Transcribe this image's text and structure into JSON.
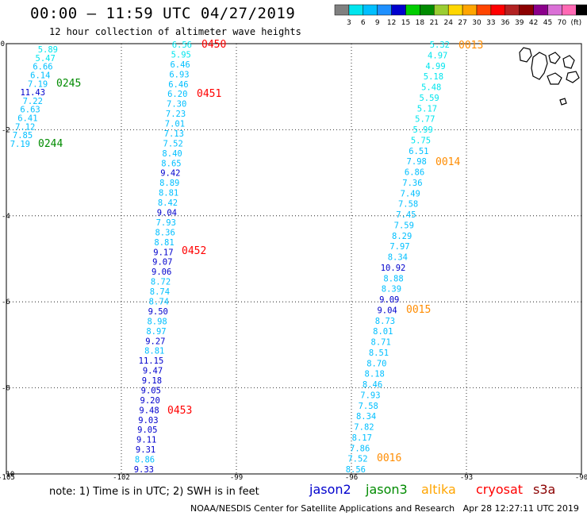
{
  "header": {
    "title": "00:00 — 11:59 UTC 04/27/2019",
    "subtitle": "12 hour collection of altimeter wave heights"
  },
  "colorbar": {
    "ticks": [
      "3",
      "6",
      "9",
      "12",
      "15",
      "18",
      "21",
      "24",
      "27",
      "30",
      "33",
      "36",
      "39",
      "42",
      "45",
      "70",
      "(ft)"
    ],
    "colors": [
      "#808080",
      "#00e5ee",
      "#00bfff",
      "#1e90ff",
      "#0000cd",
      "#00cd00",
      "#008b00",
      "#9acd32",
      "#ffd700",
      "#ffa500",
      "#ff4500",
      "#ff0000",
      "#b22222",
      "#8b0000",
      "#8b008b",
      "#da70d6",
      "#ff69b4",
      "#000000"
    ]
  },
  "axes": {
    "x_labels": [
      "-105",
      "-102",
      "-99",
      "-96",
      "-93",
      "-90"
    ],
    "y_labels": [
      "0",
      "-2",
      "-4",
      "-6",
      "-8",
      "-10"
    ]
  },
  "passes": [
    {
      "label": "0450",
      "color": "#ff0000"
    },
    {
      "label": "0451",
      "color": "#ff0000"
    },
    {
      "label": "0452",
      "color": "#ff0000"
    },
    {
      "label": "0453",
      "color": "#ff0000"
    },
    {
      "label": "0245",
      "color": "#008b00"
    },
    {
      "label": "0244",
      "color": "#008b00"
    },
    {
      "label": "0013",
      "color": "#ff8c00"
    },
    {
      "label": "0014",
      "color": "#ff8c00"
    },
    {
      "label": "0015",
      "color": "#ff8c00"
    },
    {
      "label": "0016",
      "color": "#ff8c00"
    }
  ],
  "tracks": {
    "track_a": [
      {
        "v": "5.89",
        "c": "#00e5ee"
      },
      {
        "v": "5.47",
        "c": "#00e5ee"
      },
      {
        "v": "6.66",
        "c": "#00bfff"
      },
      {
        "v": "6.14",
        "c": "#00bfff"
      },
      {
        "v": "7.19",
        "c": "#00bfff"
      },
      {
        "v": "11.43",
        "c": "#0000cd"
      },
      {
        "v": "7.22",
        "c": "#00bfff"
      },
      {
        "v": "6.63",
        "c": "#00bfff"
      },
      {
        "v": "6.41",
        "c": "#00bfff"
      },
      {
        "v": "7.12",
        "c": "#00bfff"
      },
      {
        "v": "7.85",
        "c": "#00bfff"
      },
      {
        "v": "7.19",
        "c": "#00bfff"
      }
    ],
    "track_b": [
      {
        "v": "6.56",
        "c": "#00e5ee"
      },
      {
        "v": "5.95",
        "c": "#00e5ee"
      },
      {
        "v": "6.46",
        "c": "#00bfff"
      },
      {
        "v": "6.93",
        "c": "#00bfff"
      },
      {
        "v": "6.46",
        "c": "#00bfff"
      },
      {
        "v": "6.20",
        "c": "#00bfff"
      },
      {
        "v": "7.30",
        "c": "#00bfff"
      },
      {
        "v": "7.23",
        "c": "#00bfff"
      },
      {
        "v": "7.01",
        "c": "#00bfff"
      },
      {
        "v": "7.13",
        "c": "#00bfff"
      },
      {
        "v": "7.52",
        "c": "#00bfff"
      },
      {
        "v": "8.40",
        "c": "#00bfff"
      },
      {
        "v": "8.65",
        "c": "#00bfff"
      },
      {
        "v": "9.42",
        "c": "#0000cd"
      },
      {
        "v": "8.89",
        "c": "#00bfff"
      },
      {
        "v": "8.81",
        "c": "#00bfff"
      },
      {
        "v": "8.42",
        "c": "#00bfff"
      },
      {
        "v": "9.04",
        "c": "#0000cd"
      },
      {
        "v": "7.93",
        "c": "#00bfff"
      },
      {
        "v": "8.36",
        "c": "#00bfff"
      },
      {
        "v": "8.81",
        "c": "#00bfff"
      },
      {
        "v": "9.17",
        "c": "#0000cd"
      },
      {
        "v": "9.07",
        "c": "#0000cd"
      },
      {
        "v": "9.06",
        "c": "#0000cd"
      },
      {
        "v": "8.72",
        "c": "#00bfff"
      },
      {
        "v": "8.74",
        "c": "#00bfff"
      },
      {
        "v": "8.74",
        "c": "#00bfff"
      },
      {
        "v": "9.50",
        "c": "#0000cd"
      },
      {
        "v": "8.98",
        "c": "#00bfff"
      },
      {
        "v": "8.97",
        "c": "#00bfff"
      },
      {
        "v": "9.27",
        "c": "#0000cd"
      },
      {
        "v": "8.81",
        "c": "#00bfff"
      },
      {
        "v": "11.15",
        "c": "#0000cd"
      },
      {
        "v": "9.47",
        "c": "#0000cd"
      },
      {
        "v": "9.18",
        "c": "#0000cd"
      },
      {
        "v": "9.05",
        "c": "#0000cd"
      },
      {
        "v": "9.20",
        "c": "#0000cd"
      },
      {
        "v": "9.48",
        "c": "#0000cd"
      },
      {
        "v": "9.03",
        "c": "#0000cd"
      },
      {
        "v": "9.05",
        "c": "#0000cd"
      },
      {
        "v": "9.11",
        "c": "#0000cd"
      },
      {
        "v": "9.31",
        "c": "#0000cd"
      },
      {
        "v": "8.86",
        "c": "#00bfff"
      },
      {
        "v": "9.33",
        "c": "#0000cd"
      }
    ],
    "track_c": [
      {
        "v": "5.32",
        "c": "#00e5ee"
      },
      {
        "v": "4.97",
        "c": "#00e5ee"
      },
      {
        "v": "4.99",
        "c": "#00e5ee"
      },
      {
        "v": "5.18",
        "c": "#00e5ee"
      },
      {
        "v": "5.48",
        "c": "#00e5ee"
      },
      {
        "v": "5.59",
        "c": "#00e5ee"
      },
      {
        "v": "5.17",
        "c": "#00e5ee"
      },
      {
        "v": "5.77",
        "c": "#00e5ee"
      },
      {
        "v": "5.99",
        "c": "#00e5ee"
      },
      {
        "v": "5.75",
        "c": "#00e5ee"
      },
      {
        "v": "6.51",
        "c": "#00bfff"
      },
      {
        "v": "7.98",
        "c": "#00bfff"
      },
      {
        "v": "6.86",
        "c": "#00bfff"
      },
      {
        "v": "7.36",
        "c": "#00bfff"
      },
      {
        "v": "7.49",
        "c": "#00bfff"
      },
      {
        "v": "7.58",
        "c": "#00bfff"
      },
      {
        "v": "7.45",
        "c": "#00bfff"
      },
      {
        "v": "7.59",
        "c": "#00bfff"
      },
      {
        "v": "8.29",
        "c": "#00bfff"
      },
      {
        "v": "7.97",
        "c": "#00bfff"
      },
      {
        "v": "8.34",
        "c": "#00bfff"
      },
      {
        "v": "10.92",
        "c": "#0000cd"
      },
      {
        "v": "8.88",
        "c": "#00bfff"
      },
      {
        "v": "8.39",
        "c": "#00bfff"
      },
      {
        "v": "9.09",
        "c": "#0000cd"
      },
      {
        "v": "9.04",
        "c": "#0000cd"
      },
      {
        "v": "8.73",
        "c": "#00bfff"
      },
      {
        "v": "8.01",
        "c": "#00bfff"
      },
      {
        "v": "8.71",
        "c": "#00bfff"
      },
      {
        "v": "8.51",
        "c": "#00bfff"
      },
      {
        "v": "8.70",
        "c": "#00bfff"
      },
      {
        "v": "8.18",
        "c": "#00bfff"
      },
      {
        "v": "8.46",
        "c": "#00bfff"
      },
      {
        "v": "7.93",
        "c": "#00bfff"
      },
      {
        "v": "7.58",
        "c": "#00bfff"
      },
      {
        "v": "8.34",
        "c": "#00bfff"
      },
      {
        "v": "7.82",
        "c": "#00bfff"
      },
      {
        "v": "8.17",
        "c": "#00bfff"
      },
      {
        "v": "7.86",
        "c": "#00bfff"
      },
      {
        "v": "7.52",
        "c": "#00bfff"
      },
      {
        "v": "8.56",
        "c": "#00bfff"
      }
    ]
  },
  "footer": {
    "note": "note: 1) Time is in UTC; 2) SWH is in feet",
    "satellites": [
      {
        "name": "jason2",
        "color": "#0000cd"
      },
      {
        "name": "jason3",
        "color": "#008b00"
      },
      {
        "name": "altika",
        "color": "#ffa500"
      },
      {
        "name": "cryosat",
        "color": "#ff0000"
      },
      {
        "name": "s3a",
        "color": "#8b0000"
      }
    ],
    "credit": "NOAA/NESDIS Center for Satellite Applications and Research   Apr 28 12:27:11 UTC 2019"
  }
}
